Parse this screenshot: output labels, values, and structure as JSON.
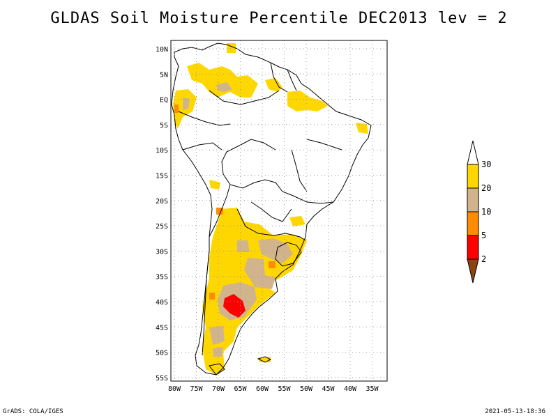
{
  "title": "GLDAS Soil Moisture Percentile DEC2013 lev = 2",
  "footer": {
    "left": "GrADS: COLA/IGES",
    "right": "2021-05-13-18:36"
  },
  "map": {
    "region": "South America",
    "lon_range": [
      -81,
      -32
    ],
    "lat_range": [
      -56,
      12
    ],
    "grid": "dotted",
    "lat_labels": [
      "10N",
      "5N",
      "EQ",
      "5S",
      "10S",
      "15S",
      "20S",
      "25S",
      "30S",
      "35S",
      "40S",
      "45S",
      "50S",
      "55S"
    ],
    "lon_labels": [
      "80W",
      "75W",
      "70W",
      "65W",
      "60W",
      "55W",
      "50W",
      "45W",
      "40W",
      "35W"
    ]
  },
  "legend": {
    "bins": [
      {
        "color": "#8b4513"
      },
      {
        "color": "#ff0000"
      },
      {
        "color": "#ff8c00"
      },
      {
        "color": "#d2b48c"
      },
      {
        "color": "#ffd700"
      },
      {
        "color": "#ffffff"
      }
    ],
    "labels": [
      "2",
      "5",
      "10",
      "20",
      "30"
    ]
  },
  "colors": {
    "yellow": "#ffd700",
    "tan": "#d2b48c",
    "orange": "#ff8c00",
    "red": "#ff0000",
    "brown": "#8b4513"
  }
}
